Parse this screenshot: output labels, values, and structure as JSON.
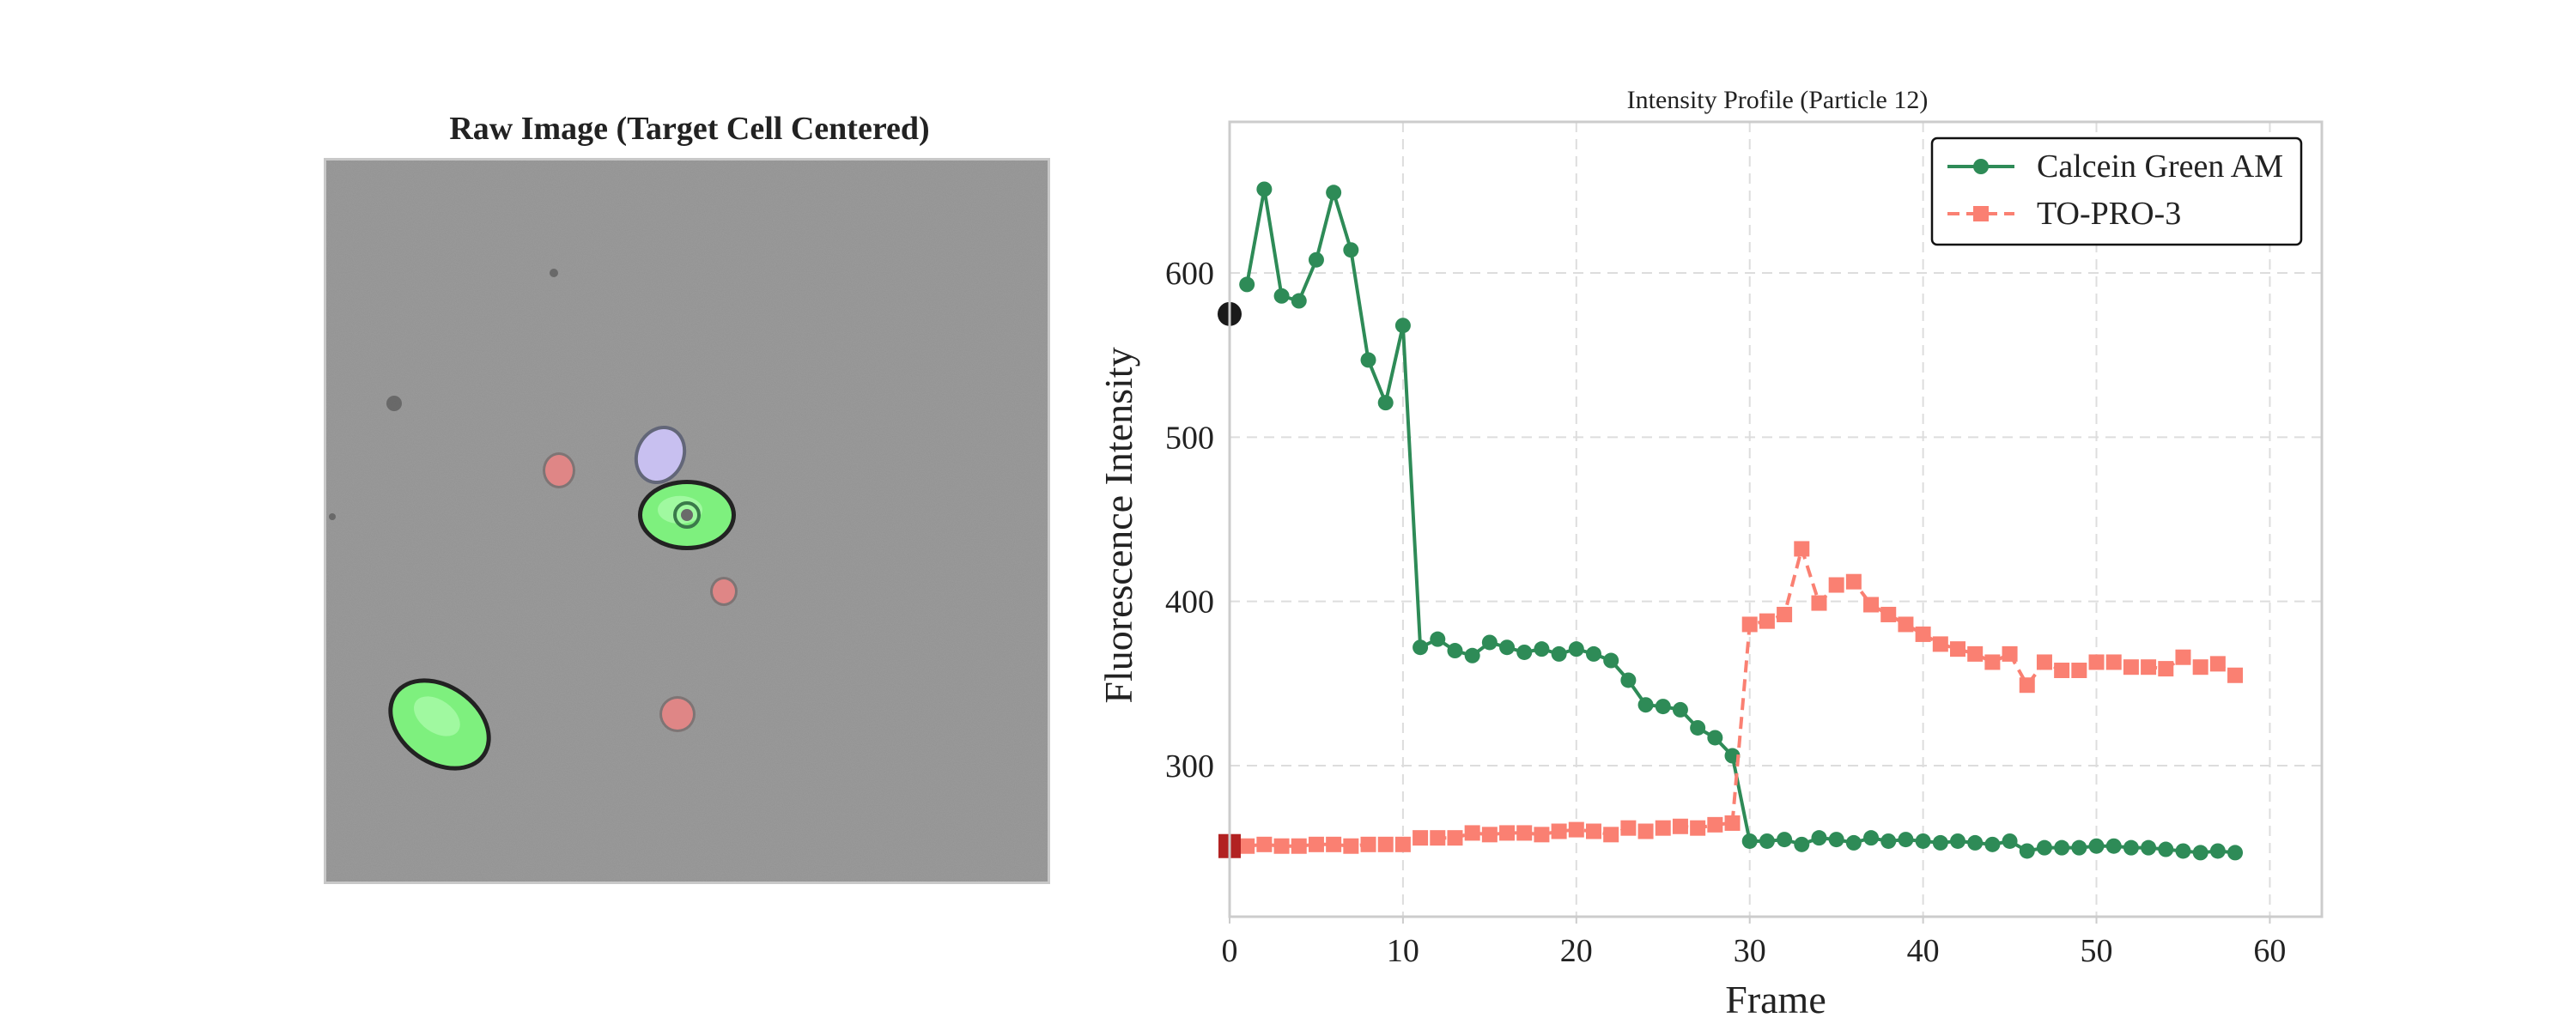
{
  "image_panel": {
    "title": "Raw Image (Target Cell Centered)",
    "background_color": "#9a9a9a",
    "cells": [
      {
        "kind": "green-cell",
        "color": "#7ef07e"
      },
      {
        "kind": "green-cell",
        "color": "#7ef07e"
      },
      {
        "kind": "lavender-cell",
        "color": "#c8c0f0"
      },
      {
        "kind": "red-cell",
        "color": "#f08a8a"
      },
      {
        "kind": "red-cell",
        "color": "#f08a8a"
      },
      {
        "kind": "red-cell",
        "color": "#f08a8a"
      }
    ]
  },
  "chart_data": {
    "type": "line",
    "title": "Intensity Profile (Particle 12)",
    "xlabel": "Frame",
    "ylabel": "Fluorescence Intensity",
    "xlim": [
      0,
      63
    ],
    "ylim": [
      208,
      692
    ],
    "xticks": [
      0,
      10,
      20,
      30,
      40,
      50,
      60
    ],
    "yticks": [
      300,
      400,
      500,
      600
    ],
    "grid": true,
    "legend_position": "top-right",
    "series": [
      {
        "name": "Calcein Green AM",
        "color": "#2e8b57",
        "marker": "circle",
        "linestyle": "solid",
        "x": [
          1,
          2,
          3,
          4,
          5,
          6,
          7,
          8,
          9,
          10,
          11,
          12,
          13,
          14,
          15,
          16,
          17,
          18,
          19,
          20,
          21,
          22,
          23,
          24,
          25,
          26,
          27,
          28,
          29,
          30,
          31,
          32,
          33,
          34,
          35,
          36,
          37,
          38,
          39,
          40,
          41,
          42,
          43,
          44,
          45,
          46,
          47,
          48,
          49,
          50,
          51,
          52,
          53,
          54,
          55,
          56,
          57,
          58
        ],
        "values": [
          593,
          651,
          586,
          583,
          608,
          649,
          614,
          547,
          521,
          568,
          372,
          377,
          370,
          367,
          375,
          372,
          369,
          371,
          368,
          371,
          368,
          364,
          352,
          337,
          336,
          334,
          323,
          317,
          306,
          254,
          254,
          255,
          252,
          256,
          255,
          253,
          256,
          254,
          255,
          254,
          253,
          254,
          253,
          252,
          254,
          248,
          250,
          250,
          250,
          251,
          251,
          250,
          250,
          249,
          248,
          247,
          248,
          247
        ]
      },
      {
        "name": "TO-PRO-3",
        "color": "#fa8072",
        "marker": "square",
        "linestyle": "dashed",
        "x": [
          1,
          2,
          3,
          4,
          5,
          6,
          7,
          8,
          9,
          10,
          11,
          12,
          13,
          14,
          15,
          16,
          17,
          18,
          19,
          20,
          21,
          22,
          23,
          24,
          25,
          26,
          27,
          28,
          29,
          30,
          31,
          32,
          33,
          34,
          35,
          36,
          37,
          38,
          39,
          40,
          41,
          42,
          43,
          44,
          45,
          46,
          47,
          48,
          49,
          50,
          51,
          52,
          53,
          54,
          55,
          56,
          57,
          58
        ],
        "values": [
          251,
          252,
          251,
          251,
          252,
          252,
          251,
          252,
          252,
          252,
          256,
          256,
          256,
          259,
          258,
          259,
          259,
          258,
          260,
          261,
          260,
          258,
          262,
          260,
          262,
          263,
          262,
          264,
          265,
          386,
          388,
          392,
          432,
          399,
          410,
          412,
          398,
          392,
          386,
          380,
          374,
          371,
          368,
          363,
          368,
          349,
          363,
          358,
          358,
          363,
          363,
          360,
          360,
          359,
          366,
          360,
          362,
          355
        ]
      }
    ],
    "start_markers": [
      {
        "x": 0,
        "y": 575,
        "color": "#1a1a1a",
        "shape": "circle"
      },
      {
        "x": 0,
        "y": 251,
        "color": "#b22222",
        "shape": "square"
      }
    ]
  }
}
